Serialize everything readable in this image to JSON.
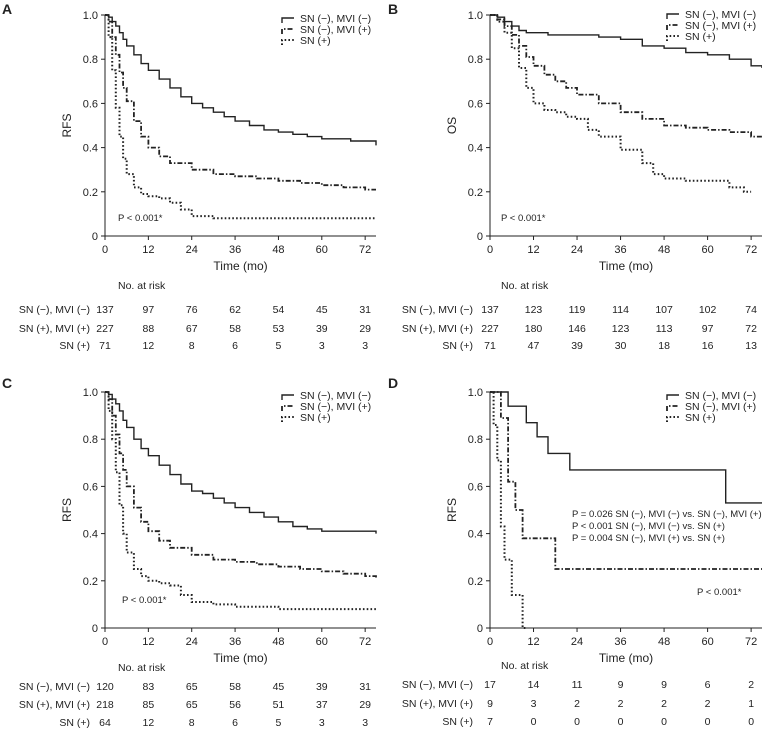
{
  "chart_data": [
    {
      "panel": "A",
      "type": "line",
      "xlabel": "Time (mo)",
      "ylabel": "RFS",
      "xticks": [
        0,
        12,
        24,
        36,
        48,
        60,
        72
      ],
      "yticks": [
        "0",
        "0.2",
        "0.4",
        "0.6",
        "0.8",
        "1.0"
      ],
      "xlim": [
        0,
        75
      ],
      "ylim": [
        0,
        1
      ],
      "legend_position": "top-right",
      "annotations": [
        "P < 0.001*"
      ],
      "series": [
        {
          "name": "SN (−), MVI (−)",
          "style": "solid",
          "x": [
            0,
            1,
            2,
            3,
            4,
            5,
            6,
            8,
            10,
            12,
            15,
            18,
            21,
            24,
            27,
            30,
            33,
            36,
            40,
            44,
            48,
            52,
            56,
            60,
            64,
            68,
            72,
            75
          ],
          "y": [
            1.0,
            0.99,
            0.97,
            0.95,
            0.92,
            0.89,
            0.86,
            0.82,
            0.78,
            0.75,
            0.71,
            0.67,
            0.63,
            0.6,
            0.58,
            0.56,
            0.54,
            0.52,
            0.5,
            0.48,
            0.47,
            0.46,
            0.45,
            0.44,
            0.44,
            0.43,
            0.43,
            0.41
          ]
        },
        {
          "name": "SN (−), MVI (+)",
          "style": "dashed",
          "x": [
            0,
            1,
            2,
            3,
            4,
            5,
            6,
            8,
            10,
            12,
            15,
            18,
            24,
            30,
            36,
            42,
            48,
            54,
            60,
            66,
            72,
            75
          ],
          "y": [
            1.0,
            0.97,
            0.9,
            0.82,
            0.74,
            0.67,
            0.61,
            0.52,
            0.45,
            0.4,
            0.36,
            0.33,
            0.3,
            0.28,
            0.27,
            0.26,
            0.25,
            0.24,
            0.23,
            0.22,
            0.21,
            0.21
          ]
        },
        {
          "name": "SN (+)",
          "style": "dotted",
          "x": [
            0,
            1,
            2,
            3,
            4,
            5,
            6,
            8,
            10,
            12,
            15,
            18,
            21,
            24,
            30,
            36,
            48,
            60,
            72,
            75
          ],
          "y": [
            1.0,
            0.9,
            0.75,
            0.58,
            0.45,
            0.35,
            0.28,
            0.22,
            0.19,
            0.18,
            0.17,
            0.15,
            0.12,
            0.09,
            0.08,
            0.08,
            0.08,
            0.08,
            0.08,
            0.08
          ]
        }
      ],
      "risk_table": {
        "title": "No. at risk",
        "times": [
          0,
          12,
          24,
          36,
          48,
          60,
          72
        ],
        "rows": [
          {
            "label": "SN (−), MVI (−)",
            "values": [
              137,
              97,
              76,
              62,
              54,
              45,
              31
            ]
          },
          {
            "label": "SN (+), MVI (+)",
            "values": [
              227,
              88,
              67,
              58,
              53,
              39,
              29
            ]
          },
          {
            "label": "SN (+)",
            "values": [
              71,
              12,
              8,
              6,
              5,
              3,
              3
            ]
          }
        ]
      }
    },
    {
      "panel": "B",
      "type": "line",
      "xlabel": "Time (mo)",
      "ylabel": "OS",
      "xticks": [
        0,
        12,
        24,
        36,
        48,
        60,
        72
      ],
      "yticks": [
        "0",
        "0.2",
        "0.4",
        "0.6",
        "0.8",
        "1.0"
      ],
      "xlim": [
        0,
        75
      ],
      "ylim": [
        0,
        1
      ],
      "legend_position": "top-right",
      "annotations": [
        "P < 0.001*"
      ],
      "series": [
        {
          "name": "SN (−), MVI (−)",
          "style": "solid",
          "x": [
            0,
            2,
            4,
            6,
            8,
            10,
            12,
            16,
            20,
            24,
            30,
            36,
            42,
            48,
            54,
            60,
            66,
            72,
            75
          ],
          "y": [
            1.0,
            0.99,
            0.97,
            0.95,
            0.93,
            0.92,
            0.92,
            0.91,
            0.91,
            0.91,
            0.9,
            0.89,
            0.86,
            0.85,
            0.83,
            0.82,
            0.8,
            0.77,
            0.76
          ]
        },
        {
          "name": "SN (−), MVI (+)",
          "style": "dashed",
          "x": [
            0,
            2,
            4,
            6,
            8,
            10,
            12,
            15,
            18,
            21,
            24,
            30,
            36,
            42,
            48,
            54,
            60,
            66,
            72,
            75
          ],
          "y": [
            1.0,
            0.98,
            0.95,
            0.91,
            0.86,
            0.81,
            0.77,
            0.73,
            0.7,
            0.67,
            0.64,
            0.6,
            0.56,
            0.53,
            0.5,
            0.49,
            0.48,
            0.47,
            0.45,
            0.45
          ]
        },
        {
          "name": "SN (+)",
          "style": "dotted",
          "x": [
            0,
            2,
            4,
            6,
            8,
            10,
            12,
            15,
            18,
            21,
            24,
            27,
            30,
            36,
            42,
            45,
            48,
            54,
            60,
            66,
            70,
            72
          ],
          "y": [
            1.0,
            0.97,
            0.92,
            0.85,
            0.76,
            0.67,
            0.6,
            0.57,
            0.56,
            0.54,
            0.53,
            0.48,
            0.45,
            0.39,
            0.33,
            0.28,
            0.26,
            0.25,
            0.25,
            0.22,
            0.2,
            0.2
          ]
        }
      ],
      "risk_table": {
        "title": "No. at risk",
        "times": [
          0,
          12,
          24,
          36,
          48,
          60,
          72
        ],
        "rows": [
          {
            "label": "SN (−), MVI (−)",
            "values": [
              137,
              123,
              119,
              114,
              107,
              102,
              74
            ]
          },
          {
            "label": "SN (+), MVI (+)",
            "values": [
              227,
              180,
              146,
              123,
              113,
              97,
              72
            ]
          },
          {
            "label": "SN (+)",
            "values": [
              71,
              47,
              39,
              30,
              18,
              16,
              13
            ]
          }
        ]
      }
    },
    {
      "panel": "C",
      "type": "line",
      "xlabel": "Time (mo)",
      "ylabel": "RFS",
      "xticks": [
        0,
        12,
        24,
        36,
        48,
        60,
        72
      ],
      "yticks": [
        "0",
        "0.2",
        "0.4",
        "0.6",
        "0.8",
        "1.0"
      ],
      "xlim": [
        0,
        75
      ],
      "ylim": [
        0,
        1
      ],
      "legend_position": "top-right",
      "annotations": [
        "P < 0.001*"
      ],
      "series": [
        {
          "name": "SN (−), MVI (−)",
          "style": "solid",
          "x": [
            0,
            1,
            2,
            3,
            4,
            5,
            6,
            8,
            10,
            12,
            15,
            18,
            21,
            24,
            27,
            30,
            33,
            36,
            40,
            44,
            48,
            52,
            56,
            60,
            64,
            68,
            72,
            75
          ],
          "y": [
            1.0,
            0.99,
            0.97,
            0.95,
            0.92,
            0.88,
            0.85,
            0.8,
            0.76,
            0.73,
            0.69,
            0.65,
            0.61,
            0.58,
            0.57,
            0.55,
            0.53,
            0.51,
            0.49,
            0.47,
            0.45,
            0.43,
            0.42,
            0.41,
            0.41,
            0.41,
            0.41,
            0.4
          ]
        },
        {
          "name": "SN (−), MVI (+)",
          "style": "dashed",
          "x": [
            0,
            1,
            2,
            3,
            4,
            5,
            6,
            8,
            10,
            12,
            15,
            18,
            24,
            30,
            36,
            42,
            48,
            54,
            60,
            66,
            72,
            75
          ],
          "y": [
            1.0,
            0.97,
            0.9,
            0.82,
            0.74,
            0.67,
            0.6,
            0.51,
            0.45,
            0.41,
            0.37,
            0.34,
            0.31,
            0.29,
            0.28,
            0.27,
            0.26,
            0.25,
            0.24,
            0.23,
            0.22,
            0.21
          ]
        },
        {
          "name": "SN (+)",
          "style": "dotted",
          "x": [
            0,
            1,
            2,
            3,
            4,
            5,
            6,
            8,
            10,
            12,
            15,
            18,
            21,
            24,
            30,
            36,
            48,
            60,
            72,
            75
          ],
          "y": [
            1.0,
            0.92,
            0.8,
            0.66,
            0.52,
            0.4,
            0.32,
            0.25,
            0.22,
            0.2,
            0.19,
            0.18,
            0.14,
            0.11,
            0.1,
            0.09,
            0.08,
            0.08,
            0.08,
            0.08
          ]
        }
      ],
      "risk_table": {
        "title": "No. at risk",
        "times": [
          0,
          12,
          24,
          36,
          48,
          60,
          72
        ],
        "rows": [
          {
            "label": "SN (−), MVI (−)",
            "values": [
              120,
              83,
              65,
              58,
              45,
              39,
              31
            ]
          },
          {
            "label": "SN (+), MVI (+)",
            "values": [
              218,
              85,
              65,
              56,
              51,
              37,
              29
            ]
          },
          {
            "label": "SN (+)",
            "values": [
              64,
              12,
              8,
              6,
              5,
              3,
              3
            ]
          }
        ]
      }
    },
    {
      "panel": "D",
      "type": "line",
      "xlabel": "Time (mo)",
      "ylabel": "RFS",
      "xticks": [
        0,
        12,
        24,
        36,
        48,
        60,
        72
      ],
      "yticks": [
        "0",
        "0.2",
        "0.4",
        "0.6",
        "0.8",
        "1.0"
      ],
      "xlim": [
        0,
        75
      ],
      "ylim": [
        0,
        1
      ],
      "legend_position": "top-right",
      "annotations": [
        "P = 0.026 SN (−), MVI (−) vs. SN (−), MVI (+)",
        "P < 0.001 SN (−), MVI (−) vs. SN (+)",
        "P = 0.004 SN (−), MVI (+) vs. SN (+)",
        "P < 0.001*"
      ],
      "series": [
        {
          "name": "SN (−), MVI (−)",
          "style": "solid",
          "x": [
            0,
            5,
            5,
            10,
            10,
            13,
            13,
            16,
            16,
            22,
            22,
            27,
            27,
            65,
            65,
            75
          ],
          "y": [
            1.0,
            1.0,
            0.94,
            0.94,
            0.87,
            0.87,
            0.81,
            0.81,
            0.74,
            0.74,
            0.67,
            0.67,
            0.67,
            0.67,
            0.53,
            0.53
          ]
        },
        {
          "name": "SN (−), MVI (+)",
          "style": "dashed",
          "x": [
            0,
            3,
            3,
            5,
            5,
            7,
            7,
            9,
            9,
            12,
            12,
            18,
            18,
            75
          ],
          "y": [
            1.0,
            1.0,
            0.89,
            0.89,
            0.62,
            0.62,
            0.5,
            0.5,
            0.38,
            0.38,
            0.38,
            0.38,
            0.25,
            0.25
          ]
        },
        {
          "name": "SN (+)",
          "style": "dotted",
          "x": [
            0,
            1,
            1,
            2,
            2,
            3,
            3,
            4,
            4,
            6,
            6,
            9,
            9,
            10
          ],
          "y": [
            1.0,
            1.0,
            0.86,
            0.86,
            0.71,
            0.71,
            0.43,
            0.43,
            0.29,
            0.29,
            0.14,
            0.14,
            0.0,
            0.0
          ]
        }
      ],
      "risk_table": {
        "title": "No. at risk",
        "times": [
          0,
          12,
          24,
          36,
          48,
          60,
          72
        ],
        "rows": [
          {
            "label": "SN (−), MVI (−)",
            "values": [
              17,
              14,
              11,
              9,
              9,
              6,
              2
            ]
          },
          {
            "label": "SN (+), MVI (+)",
            "values": [
              9,
              3,
              2,
              2,
              2,
              2,
              1
            ]
          },
          {
            "label": "SN (+)",
            "values": [
              7,
              0,
              0,
              0,
              0,
              0,
              0
            ]
          }
        ]
      }
    }
  ]
}
